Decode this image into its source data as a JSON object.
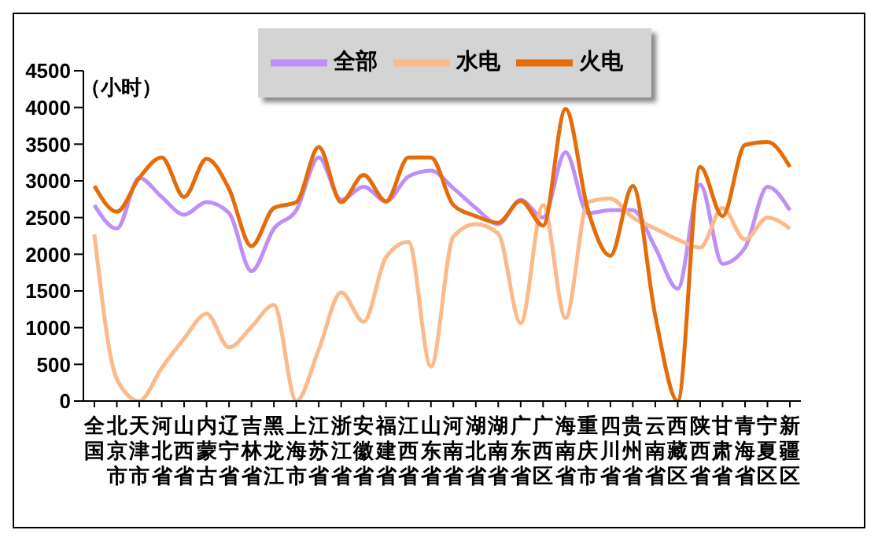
{
  "chart_data": {
    "type": "line",
    "ylabel": "（小时）",
    "categories": [
      "全国",
      "北京市",
      "天津市",
      "河北省",
      "山西省",
      "内蒙古",
      "辽宁省",
      "吉林省",
      "黑龙江",
      "上海市",
      "江苏省",
      "浙江省",
      "安徽省",
      "福建省",
      "江西省",
      "山东省",
      "河南省",
      "湖北省",
      "湖南省",
      "广东省",
      "广西区",
      "海南省",
      "重庆市",
      "四川省",
      "贵州省",
      "云南省",
      "西藏区",
      "陕西省",
      "甘肃省",
      "青海省",
      "宁夏区",
      "新疆区"
    ],
    "series": [
      {
        "name": "全部",
        "color": "#bf8ff8",
        "values": [
          2670,
          2350,
          3040,
          2780,
          2540,
          2710,
          2560,
          1770,
          2350,
          2600,
          3320,
          2740,
          2920,
          2720,
          3060,
          3140,
          2900,
          2630,
          2410,
          2740,
          2500,
          3390,
          2560,
          2600,
          2600,
          2090,
          1530,
          2950,
          1870,
          2090,
          2920,
          2600
        ]
      },
      {
        "name": "水电",
        "color": "#fcb98a",
        "values": [
          2270,
          300,
          0,
          450,
          850,
          1190,
          730,
          1010,
          1310,
          0,
          700,
          1480,
          1080,
          1960,
          2170,
          470,
          2240,
          2410,
          2280,
          1060,
          2670,
          1130,
          2710,
          2760,
          2500,
          2350,
          2200,
          2090,
          2630,
          2200,
          2500,
          2350
        ]
      },
      {
        "name": "火电",
        "color": "#e46c0a",
        "values": [
          2930,
          2580,
          3040,
          3320,
          2780,
          3300,
          2890,
          2110,
          2630,
          2710,
          3460,
          2710,
          3080,
          2720,
          3320,
          3320,
          2670,
          2520,
          2430,
          2730,
          2390,
          3980,
          2600,
          1980,
          2930,
          1160,
          0,
          3190,
          2520,
          3490,
          3530,
          3190
        ]
      }
    ],
    "ylim": [
      0,
      4500
    ],
    "yticks": [
      0,
      500,
      1000,
      1500,
      2000,
      2500,
      3000,
      3500,
      4000,
      4500
    ],
    "legend": "top",
    "marker": "none",
    "line_style": "solid"
  }
}
